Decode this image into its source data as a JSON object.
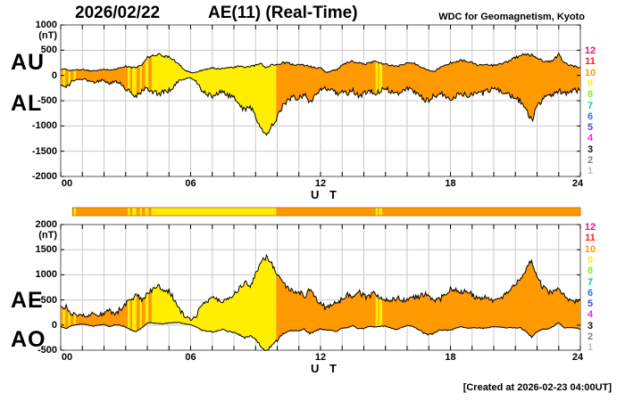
{
  "header": {
    "date": "2026/02/22",
    "title": "AE(11) (Real-Time)",
    "source": "WDC for Geomagnetism, Kyoto"
  },
  "footer": {
    "created": "[Created at 2026-02-23 04:00UT]"
  },
  "station_scale": {
    "values": [
      12,
      11,
      10,
      9,
      8,
      7,
      6,
      5,
      4,
      3,
      2,
      1
    ],
    "colors": [
      "#EE1177",
      "#FF2211",
      "#FF9900",
      "#FFEE00",
      "#88EE11",
      "#00CCAA",
      "#2277EE",
      "#5544CC",
      "#EE22EE",
      "#111111",
      "#808080",
      "#C0C0C0"
    ]
  },
  "colors": {
    "fill_10_stations": "#FF9900",
    "fill_9_stations": "#FFEE00",
    "grid": "#C8C8C8",
    "frame": "#555555",
    "line": "#000000",
    "bar_border": "#CC7700"
  },
  "station_segments": [
    [
      0.0,
      0.1,
      10
    ],
    [
      0.1,
      0.2,
      9
    ],
    [
      0.2,
      0.35,
      10
    ],
    [
      0.35,
      0.45,
      9
    ],
    [
      0.45,
      0.6,
      10
    ],
    [
      0.6,
      0.7,
      9
    ],
    [
      0.7,
      3.1,
      10
    ],
    [
      3.1,
      3.2,
      9
    ],
    [
      3.2,
      3.3,
      10
    ],
    [
      3.3,
      3.5,
      9
    ],
    [
      3.5,
      3.65,
      10
    ],
    [
      3.65,
      3.75,
      9
    ],
    [
      3.75,
      3.9,
      10
    ],
    [
      3.9,
      4.05,
      9
    ],
    [
      4.05,
      4.2,
      10
    ],
    [
      4.2,
      9.95,
      9
    ],
    [
      9.95,
      14.55,
      10
    ],
    [
      14.55,
      14.65,
      9
    ],
    [
      14.65,
      14.7,
      10
    ],
    [
      14.7,
      14.85,
      9
    ],
    [
      14.85,
      24.0,
      10
    ]
  ],
  "availability_bar": {
    "start_hour": 0.55,
    "end_hour": 24
  },
  "chart_data": [
    {
      "type": "area",
      "panel": "top",
      "left_labels": [
        "AU",
        "AL"
      ],
      "ylabel_unit": "(nT)",
      "ylim": [
        -2000,
        1000
      ],
      "yticks": [
        1000,
        500,
        0,
        -500,
        -1000,
        -1500,
        -2000
      ],
      "xlim": [
        0,
        24
      ],
      "xticks": [
        0,
        6,
        12,
        18,
        24
      ],
      "xtick_labels": [
        "00",
        "06",
        "12",
        "18",
        "24"
      ],
      "xlabel": "U T",
      "x_step_hours": 0.25,
      "grid": true,
      "noise_amplitudes": [
        25,
        55
      ],
      "series": [
        {
          "name": "AU",
          "values": [
            130,
            120,
            100,
            110,
            120,
            100,
            90,
            100,
            120,
            110,
            120,
            150,
            180,
            160,
            160,
            210,
            350,
            390,
            420,
            380,
            380,
            300,
            200,
            100,
            60,
            60,
            100,
            120,
            150,
            130,
            150,
            150,
            160,
            180,
            160,
            180,
            200,
            230,
            150,
            220,
            210,
            250,
            250,
            210,
            220,
            200,
            180,
            150,
            150,
            60,
            90,
            120,
            200,
            250,
            280,
            250,
            220,
            250,
            280,
            250,
            220,
            200,
            180,
            200,
            250,
            250,
            200,
            150,
            100,
            80,
            150,
            200,
            250,
            280,
            300,
            280,
            250,
            200,
            220,
            200,
            200,
            220,
            250,
            300,
            350,
            400,
            420,
            400,
            350,
            300,
            260,
            300,
            420,
            250,
            200,
            180,
            160
          ]
        },
        {
          "name": "AL",
          "values": [
            -200,
            -250,
            -120,
            -90,
            -70,
            -100,
            -130,
            -110,
            -90,
            -180,
            -110,
            -160,
            -260,
            -360,
            -420,
            -310,
            -260,
            -310,
            -360,
            -330,
            -300,
            -200,
            -100,
            -60,
            -50,
            -120,
            -300,
            -360,
            -410,
            -360,
            -310,
            -400,
            -450,
            -560,
            -700,
            -600,
            -800,
            -1060,
            -1200,
            -1000,
            -820,
            -600,
            -500,
            -420,
            -460,
            -360,
            -520,
            -400,
            -300,
            -260,
            -310,
            -360,
            -310,
            -360,
            -300,
            -410,
            -350,
            -300,
            -360,
            -300,
            -260,
            -310,
            -360,
            -300,
            -260,
            -300,
            -360,
            -460,
            -500,
            -400,
            -360,
            -410,
            -460,
            -400,
            -360,
            -400,
            -360,
            -310,
            -350,
            -300,
            -260,
            -300,
            -360,
            -400,
            -460,
            -510,
            -700,
            -900,
            -620,
            -460,
            -410,
            -360,
            -310,
            -360,
            -310,
            -290,
            -310
          ]
        }
      ]
    },
    {
      "type": "area",
      "panel": "bottom",
      "left_labels": [
        "AE",
        "AO"
      ],
      "ylabel_unit": "(nT)",
      "ylim": [
        -500,
        2000
      ],
      "yticks": [
        2000,
        1500,
        1000,
        500,
        0,
        -500
      ],
      "xlim": [
        0,
        24
      ],
      "xticks": [
        0,
        6,
        12,
        18,
        24
      ],
      "xtick_labels": [
        "00",
        "06",
        "12",
        "18",
        "24"
      ],
      "xlabel": "U T",
      "x_step_hours": 0.25,
      "grid": true,
      "noise_amplitudes": [
        55,
        25
      ],
      "series": [
        {
          "name": "AE",
          "values": [
            330,
            370,
            220,
            200,
            190,
            200,
            220,
            210,
            210,
            290,
            230,
            310,
            440,
            520,
            580,
            520,
            610,
            700,
            780,
            710,
            680,
            500,
            300,
            160,
            110,
            180,
            400,
            480,
            560,
            490,
            460,
            550,
            610,
            740,
            860,
            780,
            1000,
            1290,
            1350,
            1220,
            1030,
            850,
            750,
            630,
            680,
            560,
            700,
            550,
            450,
            320,
            400,
            480,
            510,
            610,
            580,
            660,
            570,
            550,
            640,
            550,
            480,
            510,
            540,
            500,
            510,
            550,
            560,
            610,
            600,
            480,
            510,
            610,
            710,
            680,
            660,
            680,
            610,
            510,
            570,
            500,
            460,
            520,
            610,
            700,
            810,
            910,
            1120,
            1300,
            970,
            760,
            670,
            660,
            730,
            610,
            510,
            470,
            470
          ]
        },
        {
          "name": "AO",
          "values": [
            -35,
            -65,
            -10,
            10,
            25,
            0,
            -20,
            -5,
            15,
            -35,
            5,
            -5,
            -40,
            -100,
            -130,
            -50,
            45,
            40,
            30,
            25,
            40,
            50,
            50,
            20,
            5,
            -30,
            -100,
            -120,
            -130,
            -115,
            -80,
            -125,
            -145,
            -190,
            -270,
            -210,
            -300,
            -415,
            -525,
            -390,
            -305,
            -175,
            -125,
            -105,
            -120,
            -80,
            -170,
            -125,
            -75,
            -100,
            -110,
            -120,
            -55,
            -55,
            -10,
            -80,
            -65,
            -25,
            -40,
            -25,
            -20,
            -55,
            -90,
            -50,
            -5,
            -25,
            -80,
            -155,
            -200,
            -160,
            -105,
            -105,
            -105,
            -60,
            -30,
            -60,
            -55,
            -55,
            -65,
            -50,
            -30,
            -40,
            -55,
            -50,
            -55,
            -55,
            -140,
            -250,
            -135,
            -80,
            -75,
            -30,
            55,
            -55,
            -55,
            -55,
            -75
          ]
        }
      ]
    }
  ]
}
